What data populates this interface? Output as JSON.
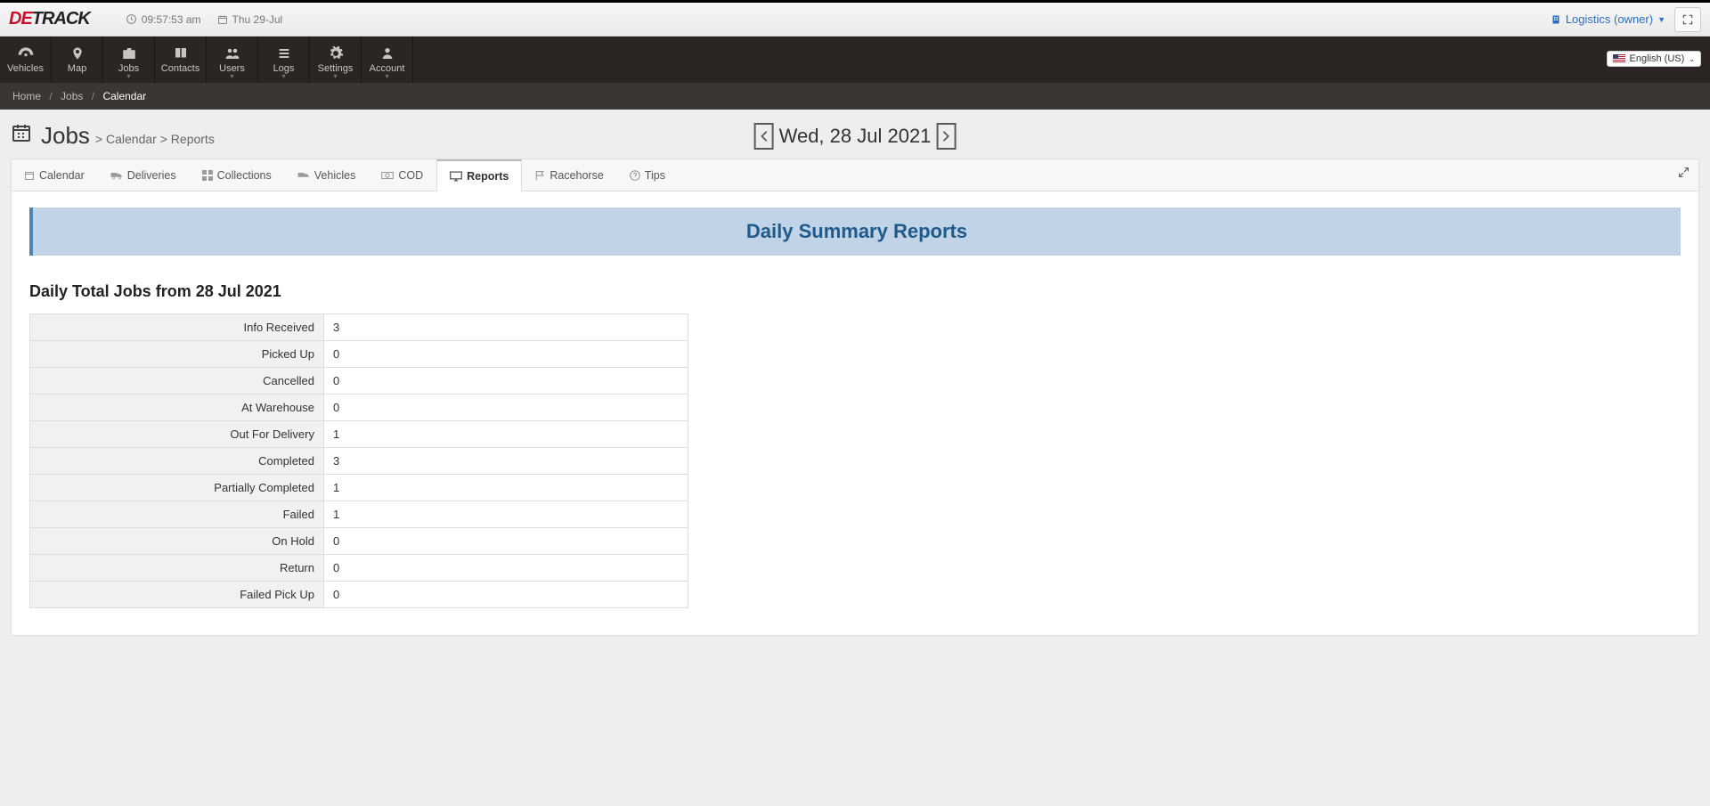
{
  "header": {
    "logo_red": "DE",
    "logo_black": "TRACK",
    "clock_time": "09:57:53 am",
    "date_label": "Thu 29-Jul",
    "owner_text": "Logistics (owner)",
    "language": "English (US)"
  },
  "nav": {
    "items": [
      {
        "label": "Vehicles",
        "caret": false
      },
      {
        "label": "Map",
        "caret": false
      },
      {
        "label": "Jobs",
        "caret": true
      },
      {
        "label": "Contacts",
        "caret": false
      },
      {
        "label": "Users",
        "caret": true
      },
      {
        "label": "Logs",
        "caret": true
      },
      {
        "label": "Settings",
        "caret": true
      },
      {
        "label": "Account",
        "caret": true
      }
    ]
  },
  "breadcrumb": {
    "home": "Home",
    "jobs": "Jobs",
    "current": "Calendar"
  },
  "page": {
    "title": "Jobs",
    "sub1": "Calendar",
    "sub2": "Reports",
    "date_display": "Wed, 28 Jul 2021"
  },
  "tabs": {
    "calendar": "Calendar",
    "deliveries": "Deliveries",
    "collections": "Collections",
    "vehicles": "Vehicles",
    "cod": "COD",
    "reports": "Reports",
    "racehorse": "Racehorse",
    "tips": "Tips"
  },
  "report": {
    "banner_title": "Daily Summary Reports",
    "section_title": "Daily Total Jobs from 28 Jul 2021",
    "rows": [
      {
        "label": "Info Received",
        "value": "3"
      },
      {
        "label": "Picked Up",
        "value": "0"
      },
      {
        "label": "Cancelled",
        "value": "0"
      },
      {
        "label": "At Warehouse",
        "value": "0"
      },
      {
        "label": "Out For Delivery",
        "value": "1"
      },
      {
        "label": "Completed",
        "value": "3"
      },
      {
        "label": "Partially Completed",
        "value": "1"
      },
      {
        "label": "Failed",
        "value": "1"
      },
      {
        "label": "On Hold",
        "value": "0"
      },
      {
        "label": "Return",
        "value": "0"
      },
      {
        "label": "Failed Pick Up",
        "value": "0"
      }
    ]
  }
}
